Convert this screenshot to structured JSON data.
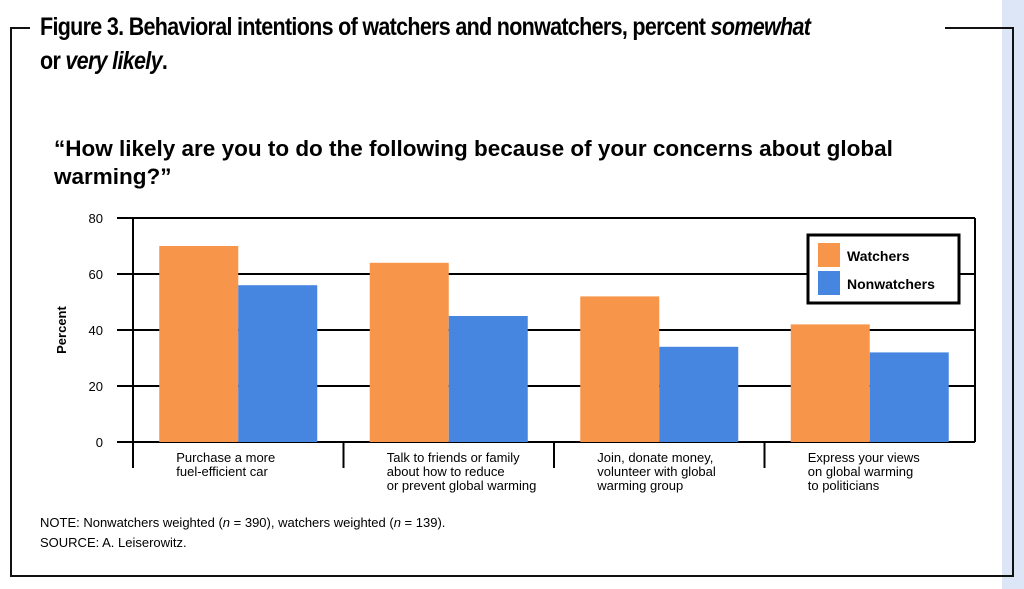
{
  "title": {
    "prefix": "Figure 3. Behavioral intentions of watchers and nonwatchers, percent ",
    "em1": "somewhat",
    "mid": " or ",
    "em2": "very likely",
    "suffix": "."
  },
  "question": "“How likely are you to do the following because of your concerns about global warming?”",
  "note": {
    "prefix": "NOTE: Nonwatchers weighted (",
    "n1": "n",
    "v1": " = 390), watchers weighted (",
    "n2": "n",
    "v2": " = 139)."
  },
  "source": "SOURCE:  A. Leiserowitz.",
  "chart_data": {
    "type": "bar",
    "title": "“How likely are you to do the following because of your concerns about global warming?”",
    "xlabel": "",
    "ylabel": "Percent",
    "ylim": [
      0,
      80
    ],
    "yticks": [
      "0",
      "20",
      "40",
      "60",
      "80"
    ],
    "grid": true,
    "legend": "top-right",
    "categories": [
      [
        "Purchase a more",
        "fuel-efficient car"
      ],
      [
        "Talk to friends or family",
        "about how to reduce",
        "or prevent global warming"
      ],
      [
        "Join, donate money,",
        "volunteer with global",
        "warming group"
      ],
      [
        "Express your views",
        "on global warming",
        "to politicians"
      ]
    ],
    "series": [
      {
        "name": "Watchers",
        "color": "#f7964a",
        "values": [
          70,
          64,
          52,
          42
        ]
      },
      {
        "name": "Nonwatchers",
        "color": "#4685e0",
        "values": [
          56,
          45,
          34,
          32
        ]
      }
    ]
  }
}
